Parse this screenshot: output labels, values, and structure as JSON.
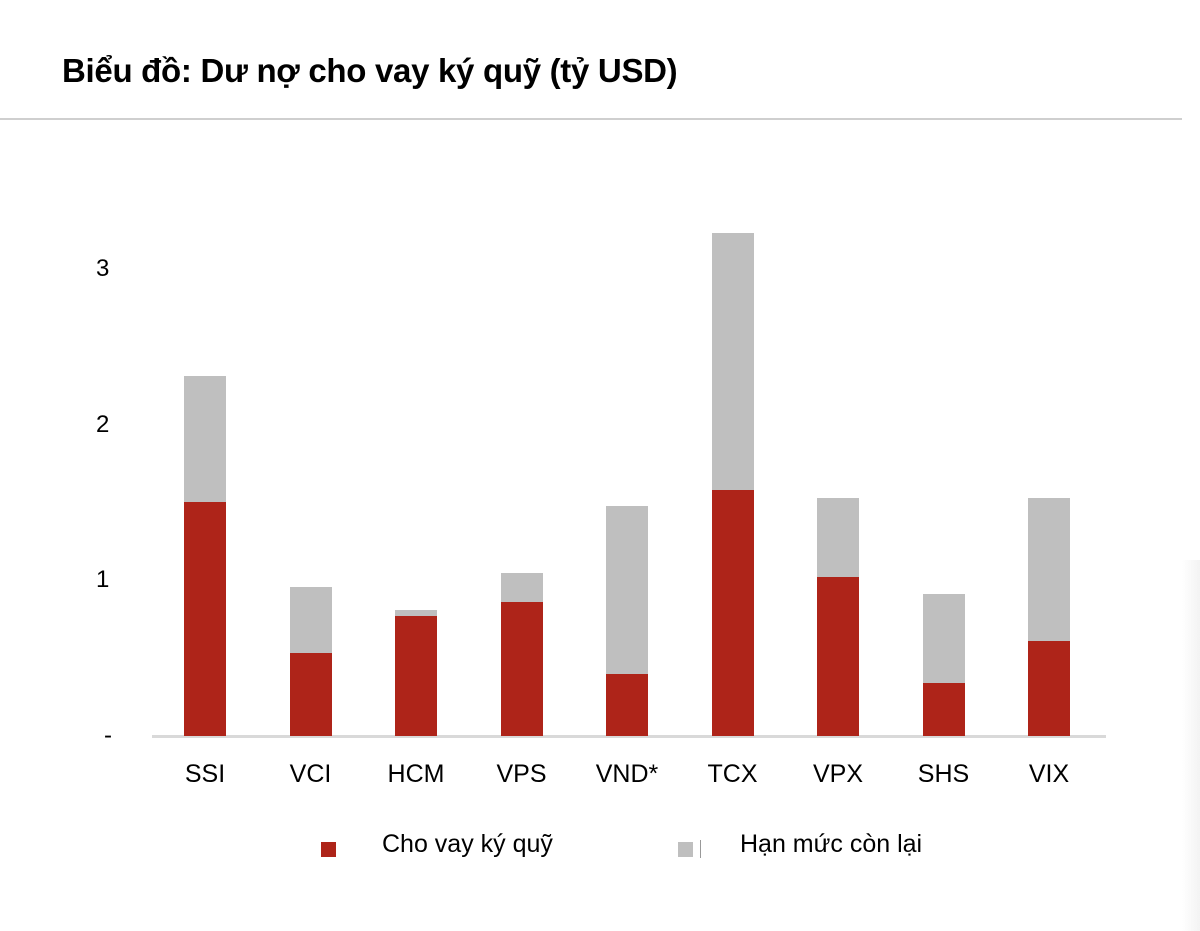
{
  "title": "Biểu đồ: Dư nợ cho vay ký quỹ (tỷ USD)",
  "colors": {
    "loan": "#ae2419",
    "remaining": "#bfbfbf",
    "axis": "#d9d9d9"
  },
  "y_axis": {
    "ticks": [
      {
        "label": "-",
        "value": 0
      },
      {
        "label": "1",
        "value": 1
      },
      {
        "label": "2",
        "value": 2
      },
      {
        "label": "3",
        "value": 3
      }
    ]
  },
  "legend": [
    {
      "label": "Cho vay ký quỹ",
      "color": "#ae2419"
    },
    {
      "label": "Hạn mức còn lại",
      "color": "#bfbfbf"
    }
  ],
  "chart_data": {
    "type": "bar",
    "stacked": true,
    "title": "Biểu đồ: Dư nợ cho vay ký quỹ (tỷ USD)",
    "xlabel": "",
    "ylabel": "",
    "ylim": [
      0,
      3.3
    ],
    "yticks": [
      0,
      1,
      2,
      3
    ],
    "ytick_labels": [
      "-",
      "1",
      "2",
      "3"
    ],
    "grid": false,
    "legend_position": "bottom",
    "categories": [
      "SSI",
      "VCI",
      "HCM",
      "VPS",
      "VND*",
      "TCX",
      "VPX",
      "SHS",
      "VIX"
    ],
    "series": [
      {
        "name": "Cho vay ký quỹ",
        "color": "#ae2419",
        "values": [
          1.5,
          0.53,
          0.77,
          0.86,
          0.4,
          1.58,
          1.02,
          0.34,
          0.61
        ]
      },
      {
        "name": "Hạn mức còn lại",
        "color": "#bfbfbf",
        "values": [
          0.81,
          0.43,
          0.04,
          0.19,
          1.08,
          1.65,
          0.51,
          0.57,
          0.92
        ]
      }
    ]
  }
}
